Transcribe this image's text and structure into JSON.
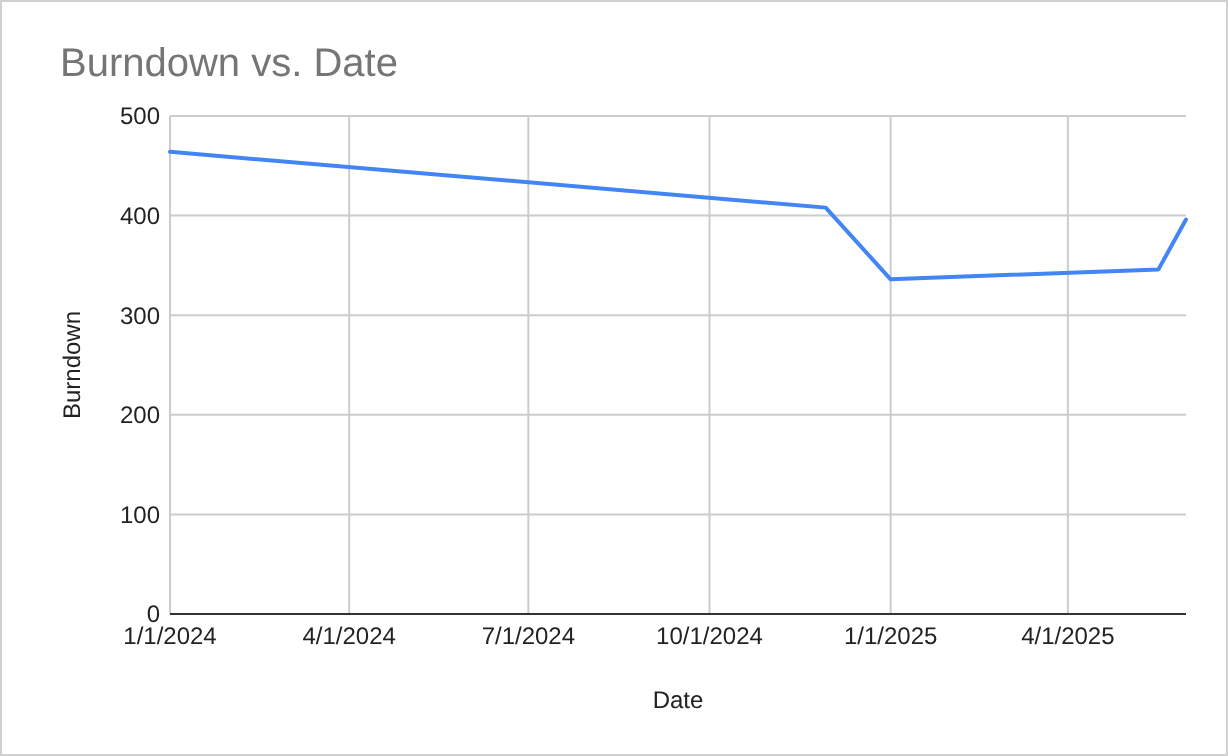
{
  "chart_data": {
    "type": "line",
    "title": "Burndown vs. Date",
    "xlabel": "Date",
    "ylabel": "Burndown",
    "x": [
      "2024-01-01",
      "2024-11-29",
      "2025-01-01",
      "2025-05-17",
      "2025-05-31"
    ],
    "series": [
      {
        "color": "#4285f4",
        "values": [
          464,
          408,
          336,
          346,
          396
        ]
      }
    ],
    "xlim": [
      "2024-01-01",
      "2025-05-31"
    ],
    "xticks": [
      {
        "value": "2024-01-01",
        "label": "1/1/2024"
      },
      {
        "value": "2024-04-01",
        "label": "4/1/2024"
      },
      {
        "value": "2024-07-01",
        "label": "7/1/2024"
      },
      {
        "value": "2024-10-01",
        "label": "10/1/2024"
      },
      {
        "value": "2025-01-01",
        "label": "1/1/2025"
      },
      {
        "value": "2025-04-01",
        "label": "4/1/2025"
      }
    ],
    "ylim": [
      0,
      500
    ],
    "yticks": [
      0,
      100,
      200,
      300,
      400,
      500
    ],
    "grid": true
  }
}
